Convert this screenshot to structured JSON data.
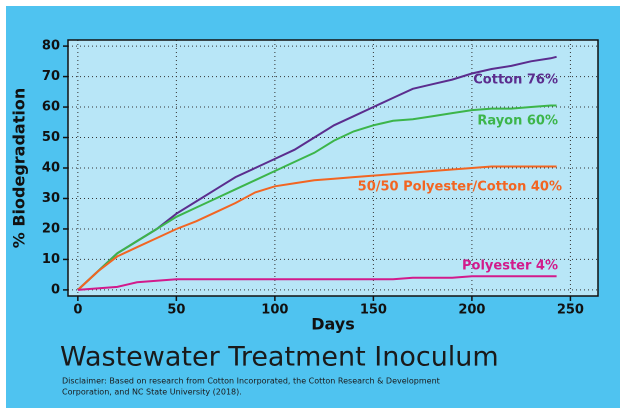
{
  "chart_data": {
    "type": "line",
    "title": "Wastewater Treatment Inoculum",
    "disclaimer": [
      "Disclaimer: Based on research from Cotton Incorporated, the Cotton Research & Development",
      "Corporation, and NC State University (2018)."
    ],
    "xlabel": "Days",
    "ylabel": "% Biodegradation",
    "x": [
      0,
      10,
      20,
      30,
      40,
      50,
      60,
      70,
      80,
      90,
      100,
      110,
      120,
      130,
      140,
      150,
      160,
      170,
      180,
      190,
      200,
      210,
      220,
      230,
      240,
      243
    ],
    "series": [
      {
        "name": "Cotton 76%",
        "color": "#5b2d8e",
        "values": [
          0,
          6,
          12,
          16,
          20,
          25,
          29,
          33,
          37,
          40,
          43,
          46,
          50,
          54,
          57,
          60,
          63,
          66,
          67.5,
          69,
          71,
          72.5,
          73.5,
          75,
          76,
          76.5
        ]
      },
      {
        "name": "Rayon 60%",
        "color": "#3cb54a",
        "values": [
          0,
          6,
          12,
          16,
          20,
          24,
          27,
          30,
          33,
          36,
          39,
          42,
          45,
          49,
          52,
          54,
          55.5,
          56,
          57,
          58,
          59,
          59.5,
          59.5,
          60,
          60.5,
          60.5
        ]
      },
      {
        "name": "50/50 Polyester/Cotton 40%",
        "color": "#f26522",
        "values": [
          0,
          6,
          11,
          14,
          17,
          20,
          22.5,
          25.5,
          28.5,
          32,
          34,
          35,
          36,
          36.5,
          37,
          37.5,
          38,
          38.5,
          39,
          39.5,
          40,
          40.5,
          40.5,
          40.5,
          40.5,
          40.5
        ]
      },
      {
        "name": "Polyester 4%",
        "color": "#d21a8c",
        "values": [
          0,
          0.5,
          1,
          2.5,
          3,
          3.5,
          3.5,
          3.5,
          3.5,
          3.5,
          3.5,
          3.5,
          3.5,
          3.5,
          3.5,
          3.5,
          3.5,
          4,
          4,
          4,
          4.5,
          4.5,
          4.5,
          4.5,
          4.5,
          4.5
        ]
      }
    ],
    "xlim": [
      -5,
      264
    ],
    "ylim": [
      -2,
      82
    ],
    "xticks": [
      0,
      50,
      100,
      150,
      200,
      250
    ],
    "yticks": [
      0,
      10,
      20,
      30,
      40,
      50,
      60,
      70,
      80
    ],
    "grid": true
  }
}
